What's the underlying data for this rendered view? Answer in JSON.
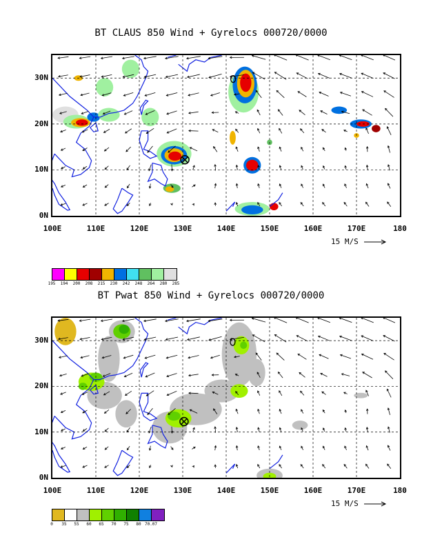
{
  "panels": [
    {
      "title": "BT CLAUS 850 Wind + Gyrelocs 000720/0000",
      "x_ticks": [
        "100E",
        "110E",
        "120E",
        "130E",
        "140E",
        "150E",
        "160E",
        "170E",
        "180"
      ],
      "y_ticks": [
        "30N",
        "20N",
        "10N",
        "0N"
      ],
      "scale_label": "15 M/S",
      "legend_colors": [
        "#ff00ff",
        "#ffff00",
        "#e60000",
        "#a00000",
        "#f0b400",
        "#0070e0",
        "#40e0f0",
        "#60c060",
        "#a0f0a0",
        "#e0e0e0"
      ],
      "legend_labels": [
        "195",
        "194",
        "200",
        "208",
        "215",
        "230",
        "242",
        "248",
        "264",
        "280",
        "285"
      ],
      "markers": [
        {
          "type": "circle-x",
          "lon": 130.5,
          "lat": 12.2
        },
        {
          "type": "circle-x",
          "lon": 141.6,
          "lat": 29.8
        }
      ]
    },
    {
      "title": "BT Pwat 850 Wind + Gyrelocs 000720/0000",
      "x_ticks": [
        "100E",
        "110E",
        "120E",
        "130E",
        "140E",
        "150E",
        "160E",
        "170E",
        "180"
      ],
      "y_ticks": [
        "30N",
        "20N",
        "10N",
        "0N"
      ],
      "scale_label": "15 M/S",
      "legend_colors": [
        "#e0b820",
        "#ffffff",
        "#c0c0c0",
        "#a0f000",
        "#60d000",
        "#30b000",
        "#108000",
        "#1080e0",
        "#8020c0"
      ],
      "legend_labels": [
        "0",
        "35",
        "55",
        "60",
        "65",
        "70",
        "75",
        "80",
        "70.07"
      ],
      "markers": [
        {
          "type": "circle-x",
          "lon": 130.3,
          "lat": 12.3
        },
        {
          "type": "circle-x",
          "lon": 141.5,
          "lat": 29.7
        }
      ]
    }
  ],
  "map_extent": {
    "lon_min": 100,
    "lon_max": 180,
    "lat_min": 0,
    "lat_max": 35
  }
}
